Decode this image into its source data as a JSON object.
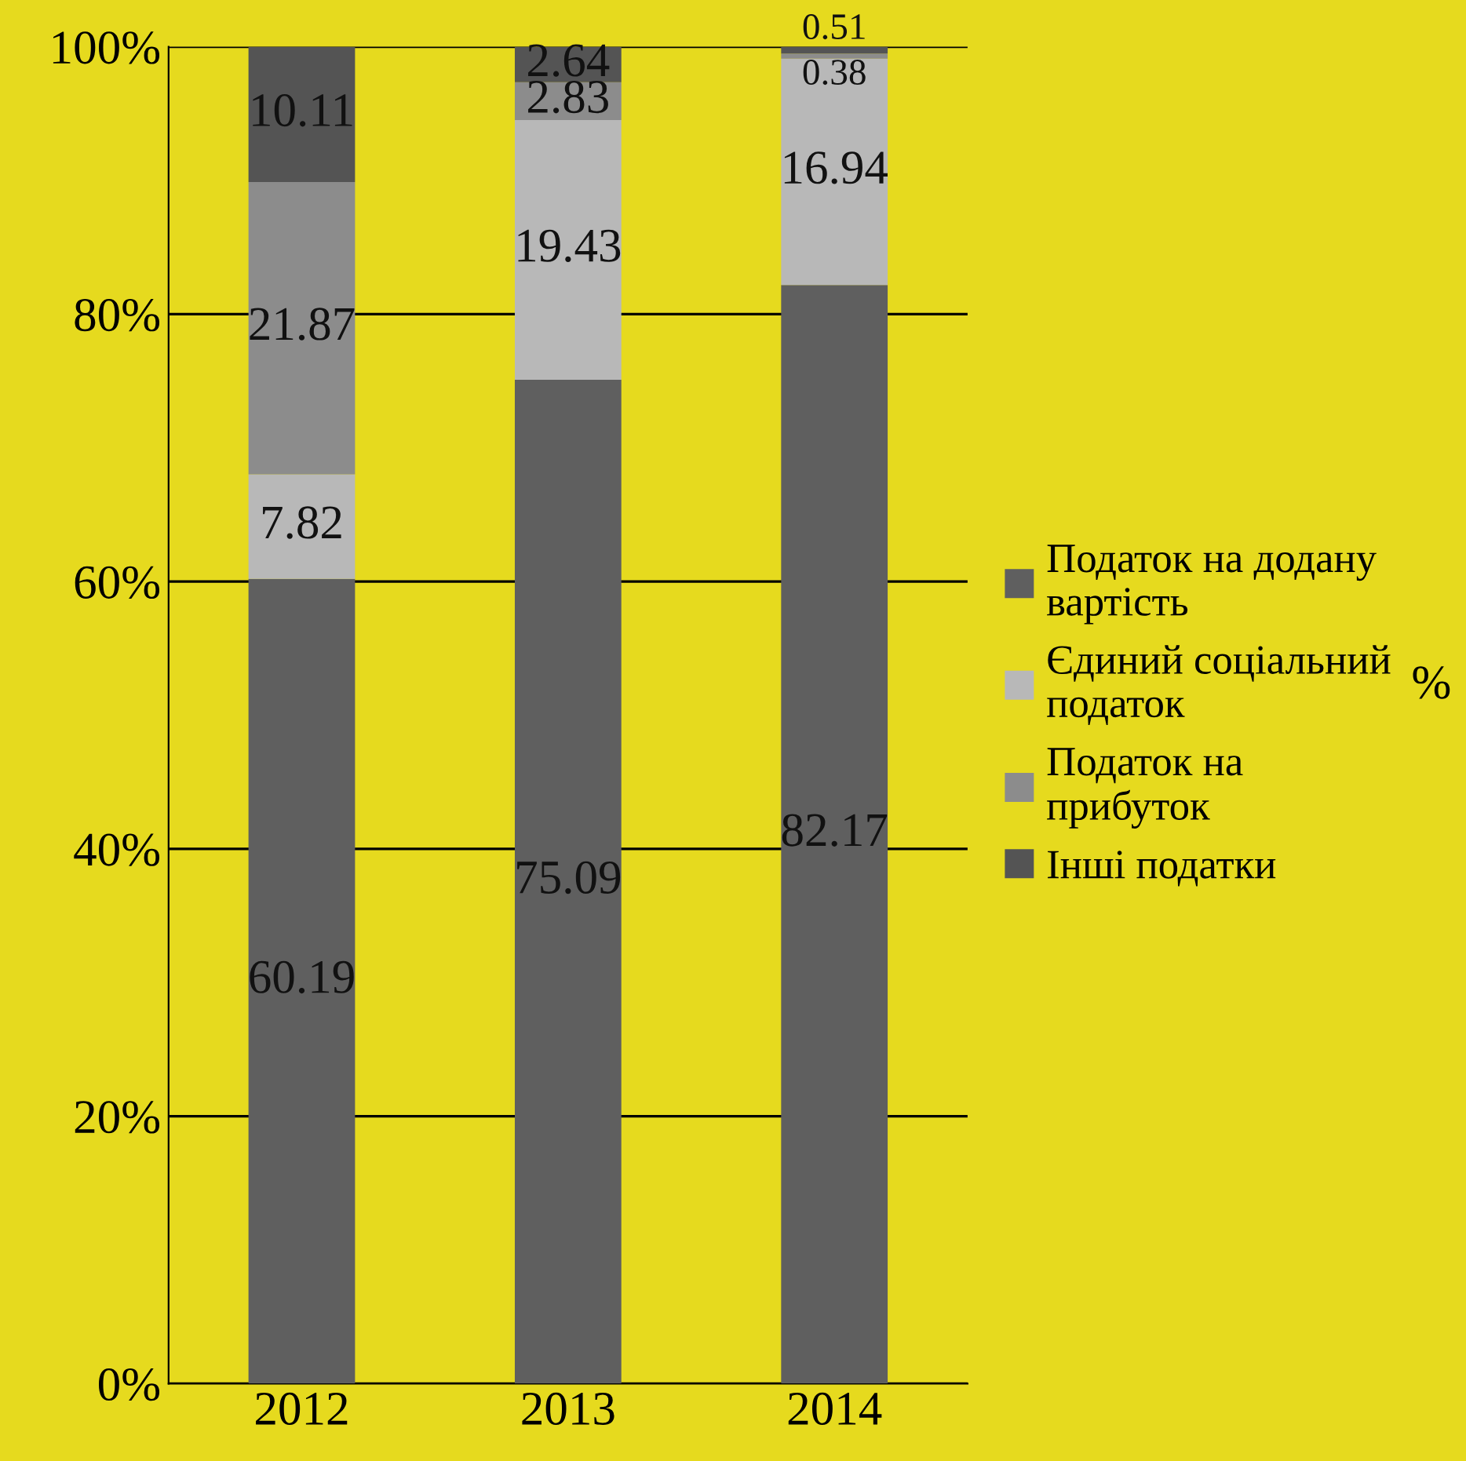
{
  "chart_data": {
    "type": "bar",
    "stacked": true,
    "categories": [
      "2012",
      "2013",
      "2014"
    ],
    "series": [
      {
        "name": "Податок на додану вартість",
        "color": "#5f5f5f",
        "values": [
          60.19,
          75.09,
          82.17
        ]
      },
      {
        "name": "Єдиний соціальний податок",
        "color": "#b8b8b8",
        "values": [
          7.82,
          19.43,
          16.94
        ]
      },
      {
        "name": "Податок на прибуток",
        "color": "#8c8c8c",
        "values": [
          21.87,
          2.83,
          0.38
        ]
      },
      {
        "name": "Інші податки",
        "color": "#545454",
        "values": [
          10.11,
          2.64,
          0.51
        ]
      }
    ],
    "ylim": [
      0,
      100
    ],
    "yticks": [
      {
        "value": 0,
        "label": "0%"
      },
      {
        "value": 20,
        "label": "20%"
      },
      {
        "value": 40,
        "label": "40%"
      },
      {
        "value": 60,
        "label": "60%"
      },
      {
        "value": 80,
        "label": "80%"
      },
      {
        "value": 100,
        "label": "100%"
      }
    ],
    "grid": "y",
    "legend": "right",
    "data_labels": true,
    "annotations": [
      "%"
    ]
  }
}
